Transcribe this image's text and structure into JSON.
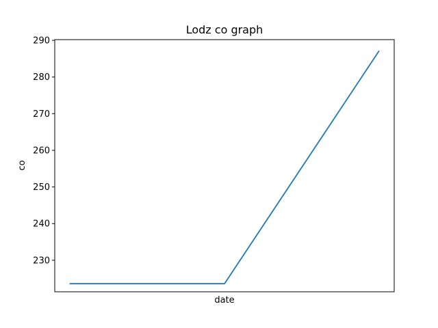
{
  "chart_data": {
    "type": "line",
    "title": "Lodz co graph",
    "xlabel": "date",
    "ylabel": "co",
    "x": [
      0,
      1,
      2
    ],
    "series": [
      {
        "values": [
          223.6,
          223.6,
          287.0
        ],
        "color": "#1f77b4"
      }
    ],
    "ylim": [
      221.4,
      290.2
    ],
    "yticks": [
      230,
      240,
      250,
      260,
      270,
      280,
      290
    ],
    "grid": false
  }
}
